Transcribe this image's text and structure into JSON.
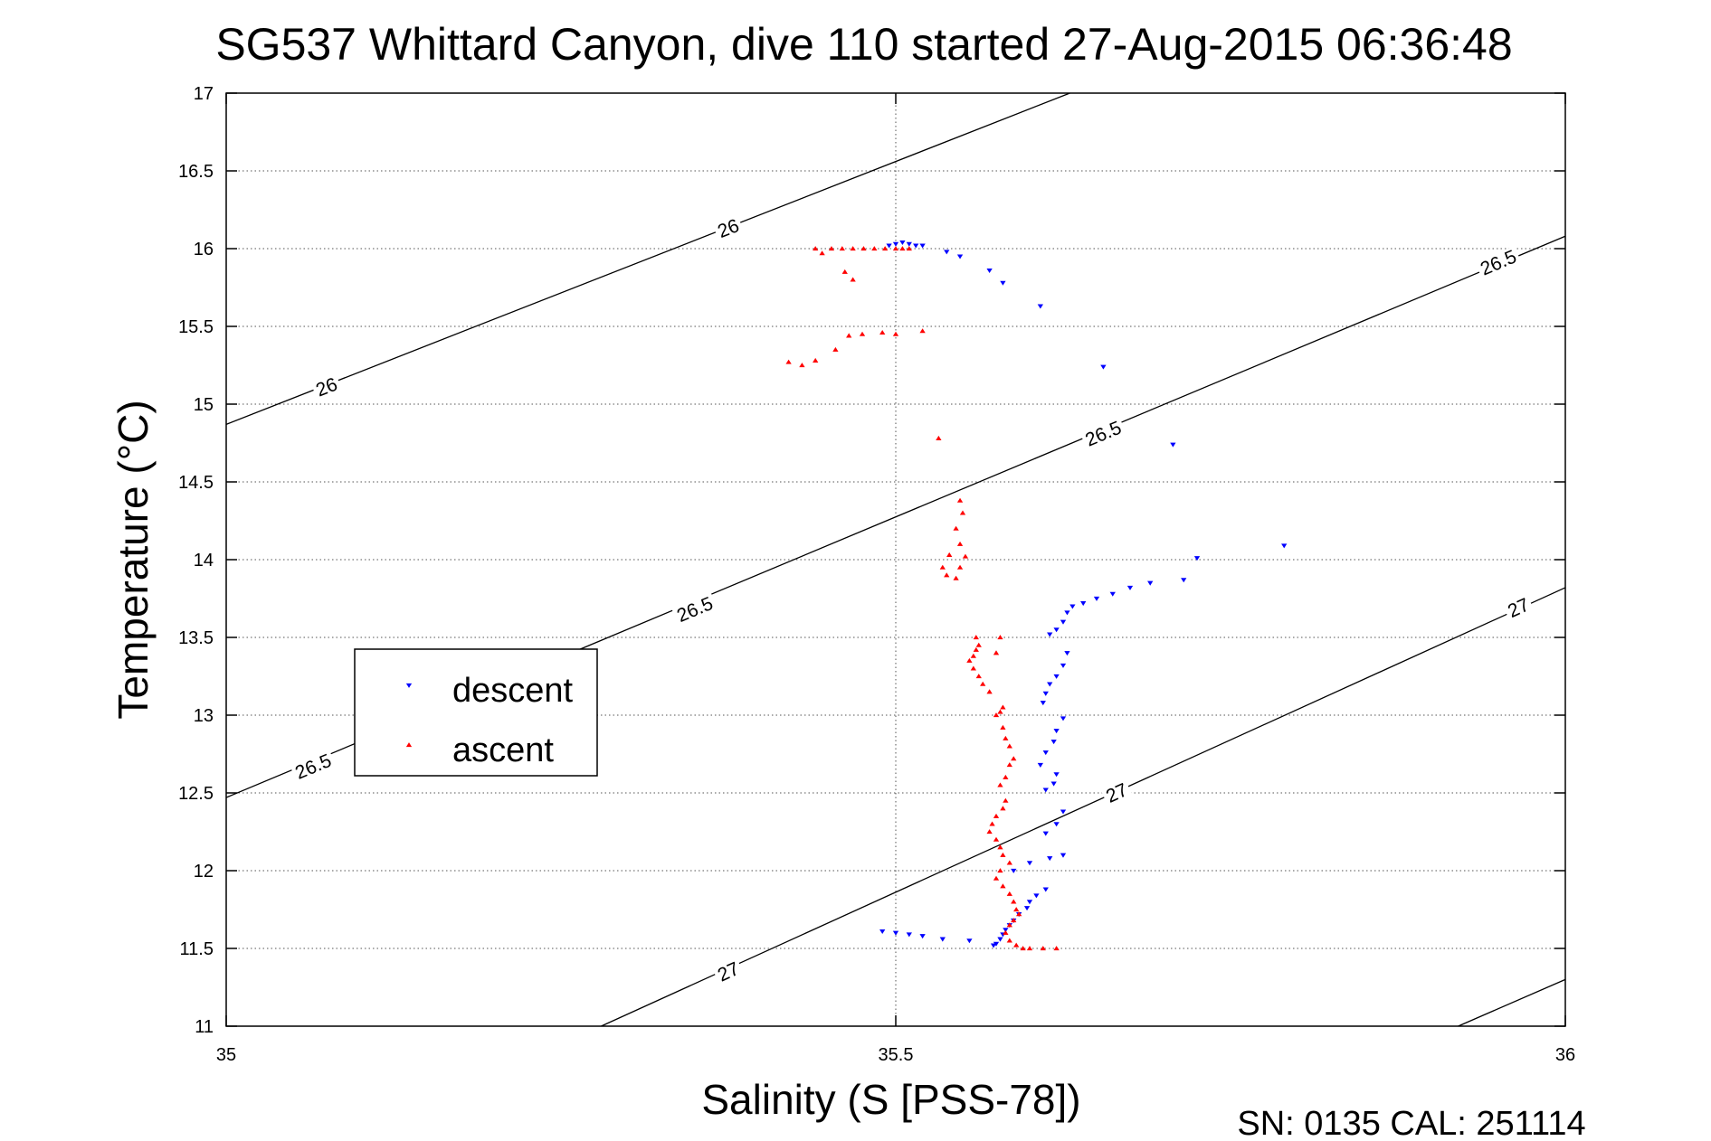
{
  "chart_data": {
    "type": "scatter",
    "title": "SG537 Whittard Canyon, dive 110 started 27-Aug-2015 06:36:48",
    "xlabel": "Salinity (S [PSS-78])",
    "ylabel": "Temperature (°C)",
    "footer": "SN: 0135  CAL: 251114",
    "xlim": [
      35,
      36
    ],
    "ylim": [
      11,
      17
    ],
    "xticks": [
      35,
      35.5,
      36
    ],
    "xtick_labels": [
      "35",
      "35.5",
      "36"
    ],
    "yticks": [
      11,
      11.5,
      12,
      12.5,
      13,
      13.5,
      14,
      14.5,
      15,
      15.5,
      16,
      16.5,
      17
    ],
    "ytick_labels": [
      "11",
      "11.5",
      "12",
      "12.5",
      "13",
      "13.5",
      "14",
      "14.5",
      "15",
      "15.5",
      "16",
      "16.5",
      "17"
    ],
    "grid": true,
    "legend_position": "left",
    "density_contours": [
      {
        "level": "26",
        "points": [
          [
            35,
            14.87
          ],
          [
            35.63,
            17.0
          ]
        ],
        "labels": [
          {
            "text": "26",
            "x": 35.075,
            "y": 15.11
          },
          {
            "text": "26",
            "x": 35.375,
            "y": 16.13
          }
        ]
      },
      {
        "level": "26.5",
        "points": [
          [
            35,
            12.47
          ],
          [
            36,
            16.08
          ]
        ],
        "labels": [
          {
            "text": "26.5",
            "x": 35.065,
            "y": 12.67
          },
          {
            "text": "26.5",
            "x": 35.35,
            "y": 13.68
          },
          {
            "text": "26.5",
            "x": 35.655,
            "y": 14.81
          },
          {
            "text": "26.5",
            "x": 35.95,
            "y": 15.91
          }
        ]
      },
      {
        "level": "27",
        "points": [
          [
            35.28,
            11.0
          ],
          [
            36,
            13.82
          ]
        ],
        "labels": [
          {
            "text": "27",
            "x": 35.375,
            "y": 11.35
          },
          {
            "text": "27",
            "x": 35.665,
            "y": 12.5
          },
          {
            "text": "27",
            "x": 35.965,
            "y": 13.69
          }
        ]
      },
      {
        "level": "",
        "points": [
          [
            35.92,
            11.0
          ],
          [
            36,
            11.3
          ]
        ],
        "labels": []
      }
    ],
    "series": [
      {
        "name": "descent",
        "color": "#0000ff",
        "marker": "triangle-down",
        "points": [
          [
            35.495,
            16.02
          ],
          [
            35.5,
            16.03
          ],
          [
            35.505,
            16.04
          ],
          [
            35.51,
            16.03
          ],
          [
            35.515,
            16.02
          ],
          [
            35.52,
            16.02
          ],
          [
            35.538,
            15.98
          ],
          [
            35.548,
            15.95
          ],
          [
            35.57,
            15.86
          ],
          [
            35.58,
            15.78
          ],
          [
            35.608,
            15.63
          ],
          [
            35.655,
            15.24
          ],
          [
            35.707,
            14.74
          ],
          [
            35.79,
            14.09
          ],
          [
            35.725,
            14.01
          ],
          [
            35.715,
            13.87
          ],
          [
            35.69,
            13.85
          ],
          [
            35.675,
            13.82
          ],
          [
            35.662,
            13.78
          ],
          [
            35.65,
            13.75
          ],
          [
            35.64,
            13.72
          ],
          [
            35.632,
            13.7
          ],
          [
            35.628,
            13.66
          ],
          [
            35.625,
            13.6
          ],
          [
            35.62,
            13.55
          ],
          [
            35.615,
            13.52
          ],
          [
            35.628,
            13.4
          ],
          [
            35.625,
            13.32
          ],
          [
            35.62,
            13.25
          ],
          [
            35.615,
            13.2
          ],
          [
            35.612,
            13.14
          ],
          [
            35.61,
            13.08
          ],
          [
            35.625,
            12.98
          ],
          [
            35.62,
            12.9
          ],
          [
            35.618,
            12.83
          ],
          [
            35.612,
            12.76
          ],
          [
            35.608,
            12.68
          ],
          [
            35.62,
            12.62
          ],
          [
            35.618,
            12.56
          ],
          [
            35.612,
            12.52
          ],
          [
            35.625,
            12.38
          ],
          [
            35.62,
            12.3
          ],
          [
            35.612,
            12.24
          ],
          [
            35.625,
            12.1
          ],
          [
            35.615,
            12.08
          ],
          [
            35.6,
            12.05
          ],
          [
            35.588,
            12.0
          ],
          [
            35.612,
            11.88
          ],
          [
            35.605,
            11.84
          ],
          [
            35.6,
            11.8
          ],
          [
            35.598,
            11.76
          ],
          [
            35.592,
            11.72
          ],
          [
            35.588,
            11.68
          ],
          [
            35.585,
            11.65
          ],
          [
            35.582,
            11.62
          ],
          [
            35.58,
            11.59
          ],
          [
            35.578,
            11.56
          ],
          [
            35.575,
            11.53
          ],
          [
            35.573,
            11.52
          ],
          [
            35.49,
            11.61
          ],
          [
            35.5,
            11.6
          ],
          [
            35.51,
            11.59
          ],
          [
            35.52,
            11.58
          ],
          [
            35.535,
            11.56
          ],
          [
            35.555,
            11.55
          ]
        ]
      },
      {
        "name": "ascent",
        "color": "#ff0000",
        "marker": "triangle-up",
        "points": [
          [
            35.44,
            16.0
          ],
          [
            35.445,
            15.97
          ],
          [
            35.452,
            16.0
          ],
          [
            35.46,
            16.0
          ],
          [
            35.468,
            16.0
          ],
          [
            35.476,
            16.0
          ],
          [
            35.484,
            16.0
          ],
          [
            35.492,
            16.0
          ],
          [
            35.5,
            16.0
          ],
          [
            35.505,
            16.0
          ],
          [
            35.51,
            16.0
          ],
          [
            35.462,
            15.85
          ],
          [
            35.468,
            15.8
          ],
          [
            35.42,
            15.27
          ],
          [
            35.43,
            15.25
          ],
          [
            35.44,
            15.28
          ],
          [
            35.455,
            15.35
          ],
          [
            35.465,
            15.44
          ],
          [
            35.475,
            15.45
          ],
          [
            35.49,
            15.46
          ],
          [
            35.5,
            15.45
          ],
          [
            35.52,
            15.47
          ],
          [
            35.532,
            14.78
          ],
          [
            35.548,
            14.38
          ],
          [
            35.55,
            14.3
          ],
          [
            35.545,
            14.2
          ],
          [
            35.548,
            14.1
          ],
          [
            35.54,
            14.03
          ],
          [
            35.535,
            13.95
          ],
          [
            35.538,
            13.9
          ],
          [
            35.545,
            13.88
          ],
          [
            35.548,
            13.95
          ],
          [
            35.552,
            14.02
          ],
          [
            35.56,
            13.5
          ],
          [
            35.562,
            13.45
          ],
          [
            35.56,
            13.42
          ],
          [
            35.558,
            13.38
          ],
          [
            35.555,
            13.35
          ],
          [
            35.558,
            13.3
          ],
          [
            35.562,
            13.25
          ],
          [
            35.565,
            13.2
          ],
          [
            35.57,
            13.15
          ],
          [
            35.575,
            13.4
          ],
          [
            35.578,
            13.5
          ],
          [
            35.58,
            13.05
          ],
          [
            35.578,
            13.02
          ],
          [
            35.575,
            13.0
          ],
          [
            35.58,
            12.92
          ],
          [
            35.582,
            12.85
          ],
          [
            35.585,
            12.8
          ],
          [
            35.588,
            12.72
          ],
          [
            35.585,
            12.68
          ],
          [
            35.582,
            12.6
          ],
          [
            35.578,
            12.55
          ],
          [
            35.582,
            12.45
          ],
          [
            35.58,
            12.4
          ],
          [
            35.575,
            12.35
          ],
          [
            35.572,
            12.3
          ],
          [
            35.57,
            12.25
          ],
          [
            35.575,
            12.2
          ],
          [
            35.578,
            12.15
          ],
          [
            35.58,
            12.1
          ],
          [
            35.585,
            12.05
          ],
          [
            35.578,
            12.0
          ],
          [
            35.575,
            11.95
          ],
          [
            35.58,
            11.9
          ],
          [
            35.585,
            11.85
          ],
          [
            35.588,
            11.8
          ],
          [
            35.59,
            11.75
          ],
          [
            35.592,
            11.72
          ],
          [
            35.588,
            11.68
          ],
          [
            35.585,
            11.65
          ],
          [
            35.582,
            11.6
          ],
          [
            35.585,
            11.55
          ],
          [
            35.59,
            11.52
          ],
          [
            35.595,
            11.5
          ],
          [
            35.6,
            11.5
          ],
          [
            35.61,
            11.5
          ],
          [
            35.62,
            11.5
          ]
        ]
      }
    ]
  }
}
